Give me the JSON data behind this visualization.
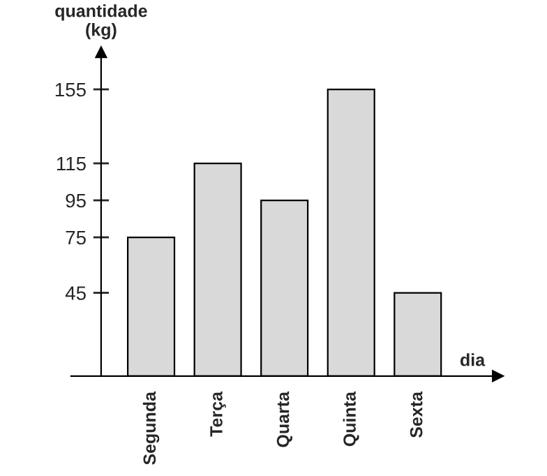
{
  "chart_data": {
    "type": "bar",
    "categories": [
      "Segunda",
      "Terça",
      "Quarta",
      "Quinta",
      "Sexta"
    ],
    "values": [
      75,
      115,
      95,
      155,
      45
    ],
    "color": "#d9d9d9",
    "xlabel": "dia",
    "ylabel": "quantidade\n(kg)",
    "ylim": [
      0,
      175
    ],
    "yticks": [
      45,
      75,
      95,
      115,
      155
    ],
    "grid": false,
    "legend": false
  }
}
